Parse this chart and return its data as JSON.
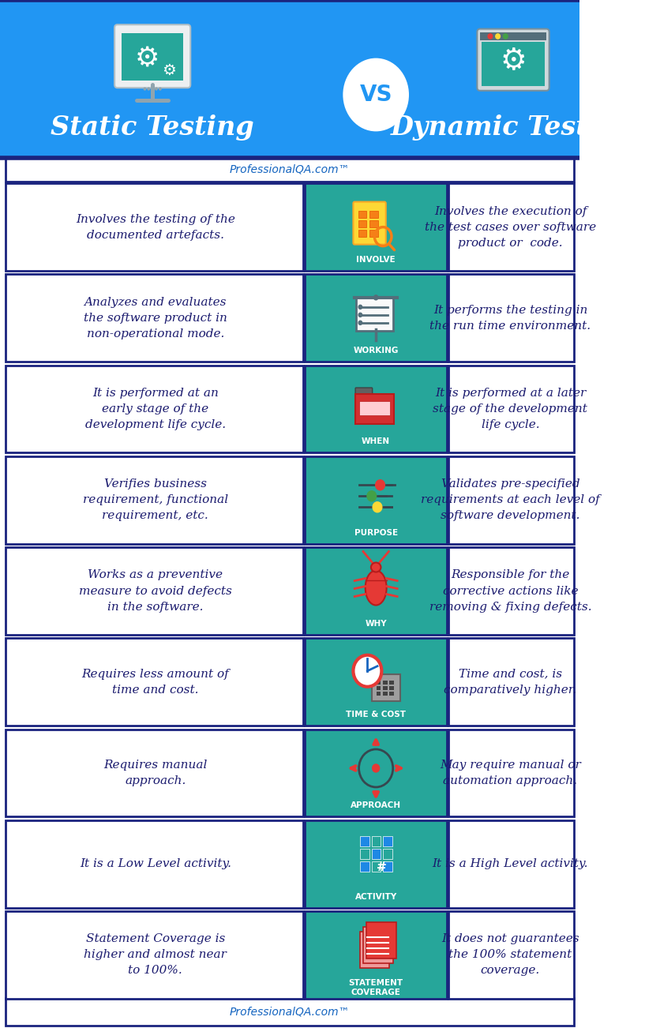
{
  "title_left": "Static Testing",
  "title_right": "Dynamic Testing",
  "vs_text": "VS",
  "header_bg": "#2196F3",
  "header_dark_border": "#1A237E",
  "teal_color": "#26A69A",
  "border_color": "#1A237E",
  "text_color": "#1A1A6E",
  "white": "#FFFFFF",
  "bg_color": "#FFFFFF",
  "watermark": "ProfessionalQA.com™",
  "rows": [
    {
      "label": "INVOLVE",
      "left": "Involves the testing of the\ndocumented artefacts.",
      "right": "Involves the execution of\nthe test cases over software\nproduct or  code."
    },
    {
      "label": "WORKING",
      "left": "Analyzes and evaluates\nthe software product in\nnon-operational mode.",
      "right": "It performs the testing in\nthe run time environment."
    },
    {
      "label": "WHEN",
      "left": "It is performed at an\nearly stage of the\ndevelopment life cycle.",
      "right": "It is performed at a later\nstage of the development\nlife cycle."
    },
    {
      "label": "PURPOSE",
      "left": "Verifies business\nrequirement, functional\nrequirement, etc.",
      "right": "Validates pre-specified\nrequirements at each level of\nsoftware development."
    },
    {
      "label": "WHY",
      "left": "Works as a preventive\nmeasure to avoid defects\nin the software.",
      "right": "Responsible for the\ncorrective actions like\nremoving & fixing defects."
    },
    {
      "label": "TIME & COST",
      "left": "Requires less amount of\ntime and cost.",
      "right": "Time and cost, is\ncomparatively higher."
    },
    {
      "label": "APPROACH",
      "left": "Requires manual\napproach.",
      "right": "May require manual or\nautomation approach."
    },
    {
      "label": "ACTIVITY",
      "left": "It is a Low Level activity.",
      "right": "It is a High Level activity."
    },
    {
      "label": "STATEMENT\nCOVERAGE",
      "left": "Statement Coverage is\nhigher and almost near\nto 100%.",
      "right": "It does not guarantees\nthe 100% statement\ncoverage."
    }
  ]
}
